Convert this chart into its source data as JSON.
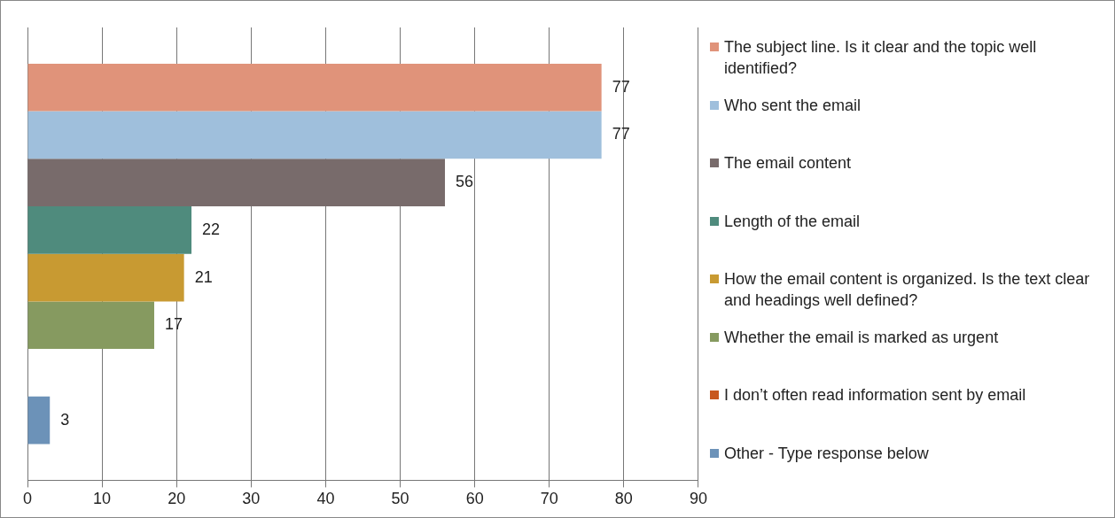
{
  "chart_data": {
    "type": "bar",
    "orientation": "horizontal",
    "categories": [
      null
    ],
    "series": [
      {
        "name": "The subject line. Is it clear and the topic well identified?",
        "color": "#e0937a",
        "values": [
          77
        ]
      },
      {
        "name": "Who sent the email",
        "color": "#9fbfdc",
        "values": [
          77
        ]
      },
      {
        "name": "The email content",
        "color": "#786b6b",
        "values": [
          56
        ]
      },
      {
        "name": "Length of the email",
        "color": "#4f8b7d",
        "values": [
          22
        ]
      },
      {
        "name": "How the email content is organized. Is the text clear and headings well defined?",
        "color": "#c89a32",
        "values": [
          21
        ]
      },
      {
        "name": "Whether the email is marked as urgent",
        "color": "#869a60",
        "values": [
          17
        ]
      },
      {
        "name": "I don’t often read information sent by email",
        "color": "#c8581e",
        "values": [
          null
        ]
      },
      {
        "name": "Other - Type response below",
        "color": "#6c92b8",
        "values": [
          3
        ]
      }
    ],
    "xlim": [
      0,
      90
    ],
    "xticks": [
      0,
      10,
      20,
      30,
      40,
      50,
      60,
      70,
      80,
      90
    ],
    "grid": "x",
    "legend": "right",
    "data_labels": true,
    "tick_labels": "x"
  }
}
